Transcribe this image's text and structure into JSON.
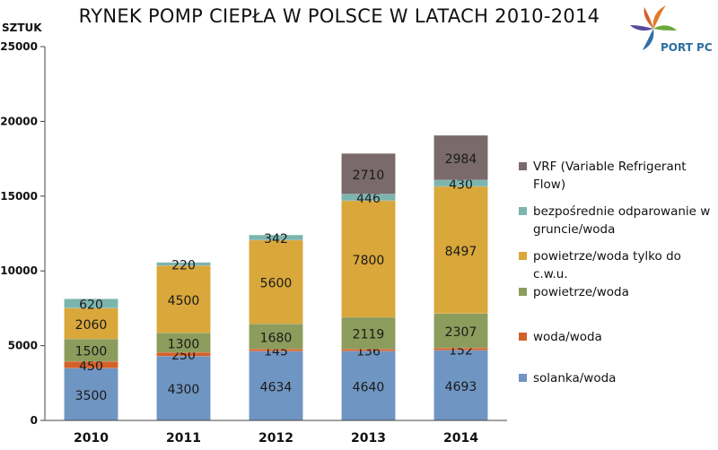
{
  "header": {
    "title": "RYNEK POMP CIEPŁA W POLSCE W LATACH 2010-2014",
    "unit_label": "SZTUK",
    "logo_text": "PORT PC"
  },
  "chart_data": {
    "type": "bar",
    "stacked": true,
    "title": "RYNEK POMP CIEPŁA W POLSCE W LATACH 2010-2014",
    "ylabel": "SZTUK",
    "xlabel": "",
    "ylim": [
      0,
      25000
    ],
    "yticks": [
      "0",
      "5000",
      "10000",
      "15000",
      "20000",
      "25000"
    ],
    "grid": false,
    "legend_position": "right",
    "categories": [
      "2010",
      "2011",
      "2012",
      "2013",
      "2014"
    ],
    "series": [
      {
        "name": "solanka/woda",
        "color": "#6f95c2",
        "values": [
          3500,
          4300,
          4634,
          4640,
          4693
        ]
      },
      {
        "name": "woda/woda",
        "color": "#d4612a",
        "values": [
          450,
          250,
          145,
          136,
          152
        ]
      },
      {
        "name": "powietrze/woda",
        "color": "#8c9c5c",
        "values": [
          1500,
          1300,
          1680,
          2119,
          2307
        ]
      },
      {
        "name": "powietrze/woda tylko do c.w.u.",
        "color": "#d9a73a",
        "values": [
          2060,
          4500,
          5600,
          7800,
          8497
        ]
      },
      {
        "name": "bezpośrednie odparowanie w gruncie/woda",
        "color": "#7cb5ae",
        "values": [
          620,
          220,
          342,
          446,
          430
        ]
      },
      {
        "name": "VRF (Variable Refrigerant Flow)",
        "color": "#7a6a6c",
        "values": [
          null,
          null,
          null,
          2710,
          2984
        ]
      }
    ]
  },
  "legend_order": [
    5,
    4,
    3,
    2,
    1,
    0
  ]
}
